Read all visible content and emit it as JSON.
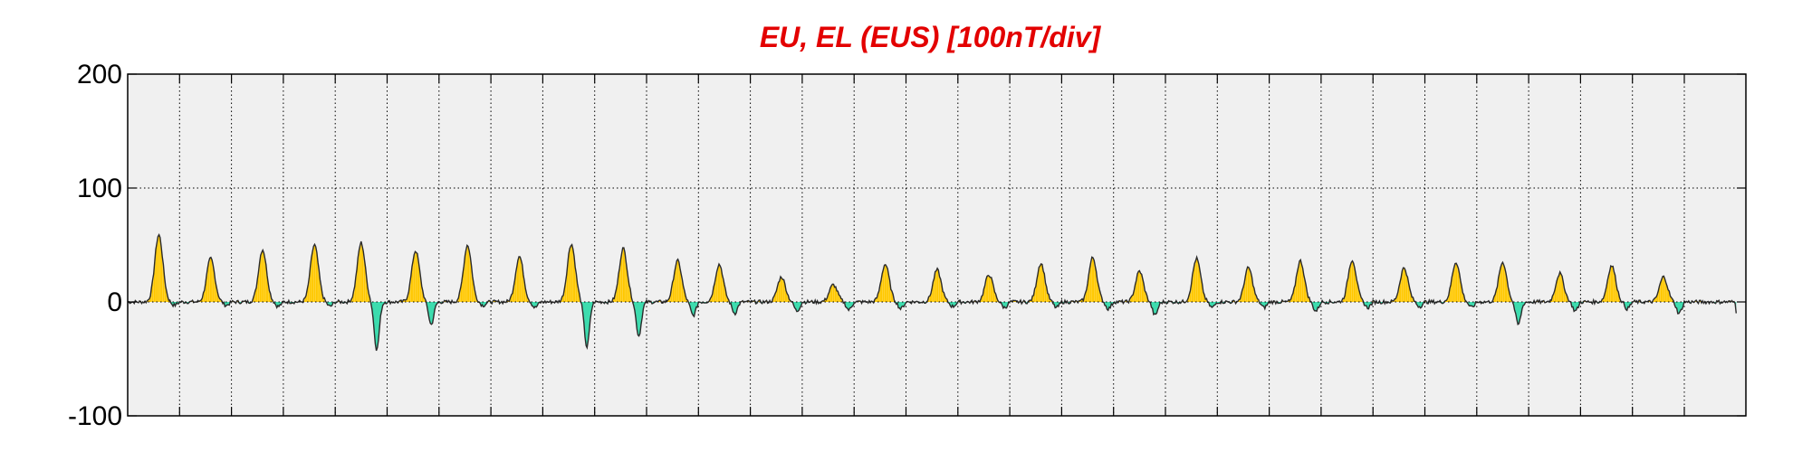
{
  "colors": {
    "title": "#e30000",
    "plot_background": "#f0f0f0",
    "positive_fill": "#ffc800",
    "negative_fill": "#3ddcae",
    "line": "#2b2b2b",
    "grid": "#000000"
  },
  "chart_data": {
    "type": "area",
    "title": "EU, EL (EUS)  [100nT/div]",
    "xlabel": "",
    "ylabel": "",
    "ylim": [
      -100,
      200
    ],
    "yticks": [
      -100,
      0,
      100,
      200
    ],
    "ytick_labels": [
      "-100",
      "0",
      "100",
      "200"
    ],
    "x_divisions": 31,
    "xlim_days": [
      0,
      31
    ],
    "grid": "dotted",
    "baseline": 0,
    "note_fill": "yellow above zero, green below zero",
    "days": [
      {
        "peak": 59,
        "low": -3,
        "peak_pos": 0.6
      },
      {
        "peak": 38,
        "low": -3,
        "peak_pos": 0.6
      },
      {
        "peak": 46,
        "low": -4,
        "peak_pos": 0.6
      },
      {
        "peak": 50,
        "low": -4,
        "peak_pos": 0.6
      },
      {
        "peak": 52,
        "low": -42,
        "peak_pos": 0.5
      },
      {
        "peak": 45,
        "low": -20,
        "peak_pos": 0.55
      },
      {
        "peak": 50,
        "low": -3,
        "peak_pos": 0.55
      },
      {
        "peak": 40,
        "low": -5,
        "peak_pos": 0.55
      },
      {
        "peak": 51,
        "low": -40,
        "peak_pos": 0.55
      },
      {
        "peak": 47,
        "low": -30,
        "peak_pos": 0.55
      },
      {
        "peak": 36,
        "low": -12,
        "peak_pos": 0.6
      },
      {
        "peak": 33,
        "low": -10,
        "peak_pos": 0.4
      },
      {
        "peak": 22,
        "low": -8,
        "peak_pos": 0.6
      },
      {
        "peak": 15,
        "low": -7,
        "peak_pos": 0.6
      },
      {
        "peak": 33,
        "low": -6,
        "peak_pos": 0.6
      },
      {
        "peak": 28,
        "low": -4,
        "peak_pos": 0.6
      },
      {
        "peak": 24,
        "low": -5,
        "peak_pos": 0.6
      },
      {
        "peak": 34,
        "low": -5,
        "peak_pos": 0.6
      },
      {
        "peak": 39,
        "low": -6,
        "peak_pos": 0.6
      },
      {
        "peak": 27,
        "low": -12,
        "peak_pos": 0.5
      },
      {
        "peak": 38,
        "low": -5,
        "peak_pos": 0.6
      },
      {
        "peak": 30,
        "low": -5,
        "peak_pos": 0.6
      },
      {
        "peak": 36,
        "low": -8,
        "peak_pos": 0.6
      },
      {
        "peak": 37,
        "low": -5,
        "peak_pos": 0.6
      },
      {
        "peak": 30,
        "low": -4,
        "peak_pos": 0.6
      },
      {
        "peak": 35,
        "low": -5,
        "peak_pos": 0.6
      },
      {
        "peak": 35,
        "low": -20,
        "peak_pos": 0.5
      },
      {
        "peak": 25,
        "low": -8,
        "peak_pos": 0.6
      },
      {
        "peak": 32,
        "low": -6,
        "peak_pos": 0.6
      },
      {
        "peak": 22,
        "low": -10,
        "peak_pos": 0.6
      },
      {
        "peak": 0,
        "low": 0,
        "peak_pos": 0.5
      }
    ]
  }
}
